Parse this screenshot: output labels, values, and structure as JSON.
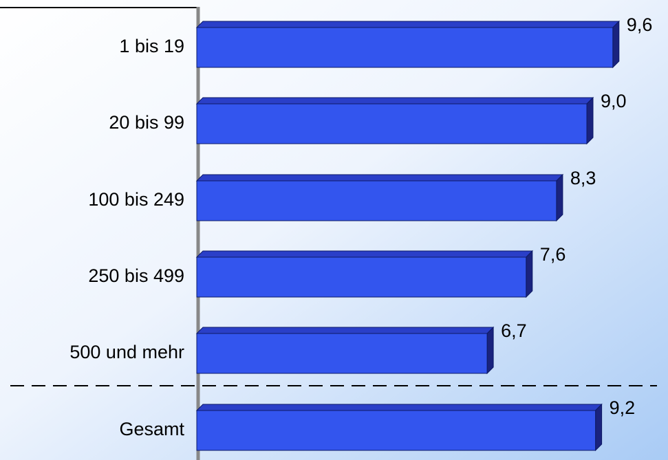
{
  "chart_data": {
    "type": "bar",
    "orientation": "horizontal",
    "categories": [
      "1 bis 19",
      "20 bis 99",
      "100 bis 249",
      "250 bis 499",
      "500 und mehr",
      "Gesamt"
    ],
    "values": [
      9.6,
      9.0,
      8.3,
      7.6,
      6.7,
      9.2
    ],
    "value_labels": [
      "9,6",
      "9,0",
      "8,3",
      "7,6",
      "6,7",
      "9,2"
    ],
    "color": "#3355ee"
  }
}
